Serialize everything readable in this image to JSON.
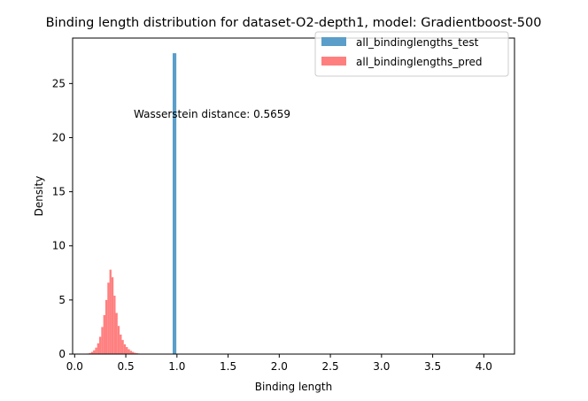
{
  "chart_data": {
    "type": "histogram",
    "title": "Binding length distribution for dataset-O2-depth1, model: Gradientboost-500",
    "xlabel": "Binding length",
    "ylabel": "Density",
    "xlim": [
      -0.02,
      4.3
    ],
    "ylim": [
      0,
      29.2
    ],
    "xticks": [
      0.0,
      0.5,
      1.0,
      1.5,
      2.0,
      2.5,
      3.0,
      3.5,
      4.0
    ],
    "xtick_labels": [
      "0.0",
      "0.5",
      "1.0",
      "1.5",
      "2.0",
      "2.5",
      "3.0",
      "3.5",
      "4.0"
    ],
    "yticks": [
      0,
      5,
      10,
      15,
      20,
      25
    ],
    "ytick_labels": [
      "0",
      "5",
      "10",
      "15",
      "20",
      "25"
    ],
    "grid": false,
    "legend_position": "top-right",
    "annotation": "Wasserstein distance: 0.5659",
    "series": [
      {
        "name": "all_bindinglengths_test",
        "color": "#5a9ec9",
        "bins": [
          {
            "x0": 0.958,
            "x1": 0.994,
            "density": 27.8
          }
        ]
      },
      {
        "name": "all_bindinglengths_pred",
        "color": "#ff7f7f",
        "bins": [
          {
            "x0": 0.12,
            "x1": 0.14,
            "density": 0.05
          },
          {
            "x0": 0.14,
            "x1": 0.16,
            "density": 0.1
          },
          {
            "x0": 0.16,
            "x1": 0.18,
            "density": 0.2
          },
          {
            "x0": 0.18,
            "x1": 0.2,
            "density": 0.35
          },
          {
            "x0": 0.2,
            "x1": 0.22,
            "density": 0.6
          },
          {
            "x0": 0.22,
            "x1": 0.24,
            "density": 1.0
          },
          {
            "x0": 0.24,
            "x1": 0.26,
            "density": 1.6
          },
          {
            "x0": 0.26,
            "x1": 0.28,
            "density": 2.5
          },
          {
            "x0": 0.28,
            "x1": 0.3,
            "density": 3.6
          },
          {
            "x0": 0.3,
            "x1": 0.32,
            "density": 5.0
          },
          {
            "x0": 0.32,
            "x1": 0.34,
            "density": 6.6
          },
          {
            "x0": 0.34,
            "x1": 0.36,
            "density": 7.8
          },
          {
            "x0": 0.36,
            "x1": 0.38,
            "density": 7.1
          },
          {
            "x0": 0.38,
            "x1": 0.4,
            "density": 5.4
          },
          {
            "x0": 0.4,
            "x1": 0.42,
            "density": 3.8
          },
          {
            "x0": 0.42,
            "x1": 0.44,
            "density": 2.6
          },
          {
            "x0": 0.44,
            "x1": 0.46,
            "density": 1.8
          },
          {
            "x0": 0.46,
            "x1": 0.48,
            "density": 1.3
          },
          {
            "x0": 0.48,
            "x1": 0.5,
            "density": 0.9
          },
          {
            "x0": 0.5,
            "x1": 0.52,
            "density": 0.65
          },
          {
            "x0": 0.52,
            "x1": 0.54,
            "density": 0.45
          },
          {
            "x0": 0.54,
            "x1": 0.56,
            "density": 0.3
          },
          {
            "x0": 0.56,
            "x1": 0.58,
            "density": 0.2
          },
          {
            "x0": 0.58,
            "x1": 0.6,
            "density": 0.12
          },
          {
            "x0": 0.6,
            "x1": 0.62,
            "density": 0.08
          },
          {
            "x0": 0.62,
            "x1": 0.64,
            "density": 0.05
          },
          {
            "x0": 0.64,
            "x1": 0.66,
            "density": 0.03
          },
          {
            "x0": 0.66,
            "x1": 0.68,
            "density": 0.02
          },
          {
            "x0": 0.68,
            "x1": 0.7,
            "density": 0.01
          }
        ]
      }
    ]
  }
}
